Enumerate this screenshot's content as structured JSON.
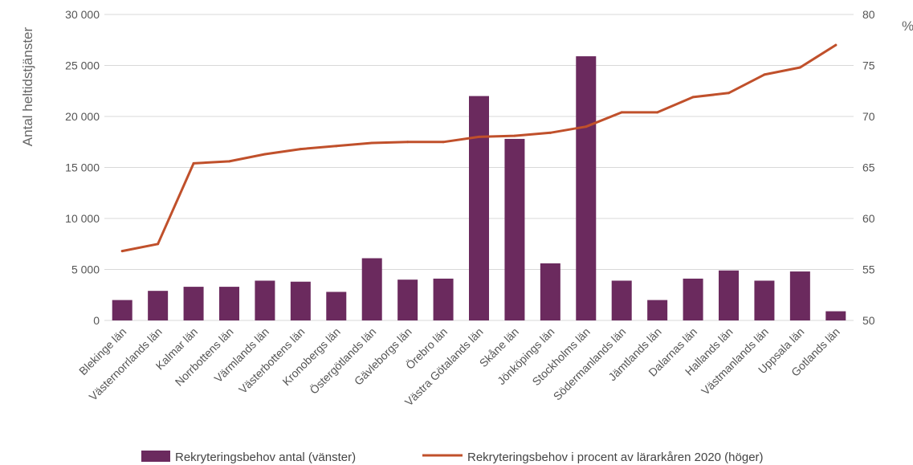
{
  "chart_data": {
    "type": "bar",
    "categories": [
      "Blekinge län",
      "Västernorrlands län",
      "Kalmar län",
      "Norrbottens län",
      "Värmlands län",
      "Västerbottens län",
      "Kronobergs län",
      "Östergötlands län",
      "Gävleborgs län",
      "Örebro län",
      "Västra Götalands län",
      "Skåne län",
      "Jönköpings län",
      "Stockholms län",
      "Södermanlands län",
      "Jämtlands län",
      "Dalarnas län",
      "Hallands län",
      "Västmanlands län",
      "Uppsala län",
      "Gotlands län"
    ],
    "series": [
      {
        "name": "Rekryteringsbehov antal (vänster)",
        "type": "bar",
        "axis": "left",
        "color": "#6b2a5e",
        "values": [
          2000,
          2900,
          3300,
          3300,
          3900,
          3800,
          2800,
          6100,
          4000,
          4100,
          22000,
          17800,
          5600,
          25900,
          3900,
          2000,
          4100,
          4900,
          3900,
          4800,
          900
        ]
      },
      {
        "name": "Rekryteringsbehov i procent av lärarkåren 2020 (höger)",
        "type": "line",
        "axis": "right",
        "color": "#c0502b",
        "values": [
          56.8,
          57.5,
          65.4,
          65.6,
          66.3,
          66.8,
          67.1,
          67.4,
          67.5,
          67.5,
          68.0,
          68.1,
          68.4,
          69.0,
          70.4,
          70.4,
          71.9,
          72.3,
          74.1,
          74.8,
          77.0
        ]
      }
    ],
    "y_left": {
      "label": "Antal heltidstjänster",
      "lim": [
        0,
        30000
      ],
      "ticks": [
        0,
        5000,
        10000,
        15000,
        20000,
        25000,
        30000
      ],
      "tick_labels": [
        "0",
        "5 000",
        "10 000",
        "15 000",
        "20 000",
        "25 000",
        "30 000"
      ]
    },
    "y_right": {
      "label": "%",
      "lim": [
        50,
        80
      ],
      "ticks": [
        50,
        55,
        60,
        65,
        70,
        75,
        80
      ],
      "tick_labels": [
        "50",
        "55",
        "60",
        "65",
        "70",
        "75",
        "80"
      ]
    },
    "grid": true,
    "legend_position": "bottom"
  }
}
